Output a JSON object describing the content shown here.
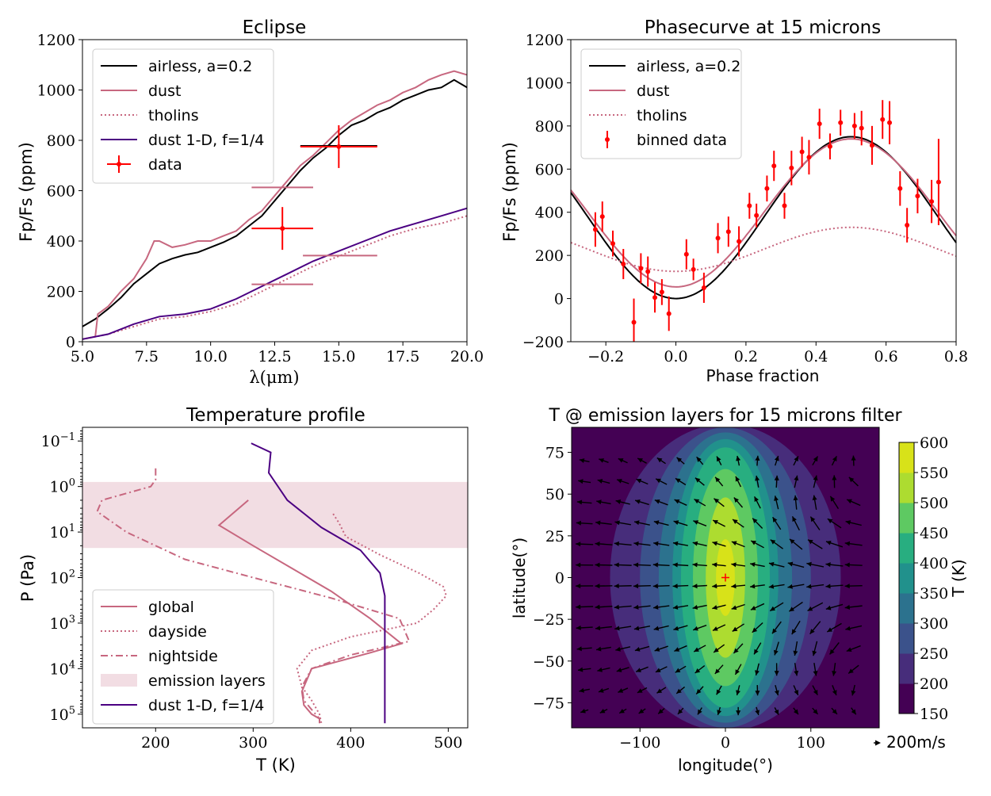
{
  "colors": {
    "black": "#000000",
    "dust": "#c7677f",
    "indigo": "#4b0082",
    "red": "#ff0000",
    "band": "#f2dde3"
  },
  "chart_data": [
    {
      "id": "eclipse",
      "type": "line",
      "title": "Eclipse",
      "xlabel": "λ(μm)",
      "ylabel": "Fp/Fs (ppm)",
      "xlim": [
        5.0,
        20.0
      ],
      "ylim": [
        0,
        1200
      ],
      "xticks": [
        "5.0",
        "7.5",
        "10.0",
        "12.5",
        "15.0",
        "17.5",
        "20.0"
      ],
      "yticks": [
        "0",
        "200",
        "400",
        "600",
        "800",
        "1000",
        "1200"
      ],
      "legend": [
        "airless, a=0.2",
        "dust",
        "tholins",
        "dust 1-D, f=1/4",
        "data"
      ],
      "series": [
        {
          "name": "airless, a=0.2",
          "style": "solid",
          "color": "black",
          "x": [
            5,
            5.5,
            6,
            6.5,
            7,
            7.5,
            8,
            8.5,
            9,
            9.5,
            10,
            10.5,
            11,
            11.5,
            12,
            12.5,
            13,
            13.5,
            14,
            14.5,
            15,
            15.5,
            16,
            16.5,
            17,
            17.5,
            18,
            18.5,
            19,
            19.5,
            20
          ],
          "y": [
            60,
            90,
            130,
            175,
            230,
            270,
            310,
            330,
            345,
            355,
            375,
            395,
            420,
            460,
            500,
            560,
            620,
            680,
            730,
            770,
            820,
            860,
            880,
            910,
            930,
            960,
            980,
            1000,
            1010,
            1040,
            1010
          ]
        },
        {
          "name": "dust",
          "style": "solid",
          "color": "dust",
          "x": [
            5,
            5.5,
            5.6,
            6,
            6.5,
            7,
            7.5,
            7.8,
            8,
            8.5,
            9,
            9.5,
            10,
            10.5,
            11,
            11.5,
            12,
            12.5,
            13,
            13.5,
            14,
            14.5,
            15,
            15.5,
            16,
            16.5,
            17,
            17.5,
            18,
            18.5,
            19,
            19.5,
            20
          ],
          "y": [
            10,
            20,
            110,
            140,
            200,
            250,
            330,
            400,
            400,
            375,
            385,
            400,
            400,
            420,
            440,
            485,
            520,
            580,
            640,
            700,
            740,
            790,
            840,
            880,
            910,
            940,
            960,
            990,
            1010,
            1040,
            1060,
            1075,
            1060
          ]
        },
        {
          "name": "tholins",
          "style": "dotted",
          "color": "dust",
          "x": [
            5,
            6,
            7,
            8,
            9,
            10,
            11,
            12,
            13,
            14,
            15,
            16,
            17,
            18,
            19,
            20
          ],
          "y": [
            10,
            30,
            60,
            90,
            100,
            120,
            150,
            200,
            250,
            300,
            340,
            380,
            420,
            450,
            470,
            500
          ]
        },
        {
          "name": "dust 1-D, f=1/4",
          "style": "solid",
          "color": "indigo",
          "x": [
            5,
            6,
            7,
            8,
            9,
            10,
            11,
            12,
            13,
            14,
            15,
            16,
            17,
            18,
            19,
            20
          ],
          "y": [
            10,
            30,
            70,
            100,
            110,
            130,
            170,
            220,
            270,
            320,
            360,
            400,
            440,
            470,
            500,
            530
          ]
        }
      ],
      "data_points": [
        {
          "x": 12.8,
          "y": 450,
          "xerr": 1.2,
          "yerr": 85,
          "color": "red"
        },
        {
          "x": 15.0,
          "y": 775,
          "xerr": 1.5,
          "yerr": 85,
          "color": "red"
        }
      ],
      "model_bins": [
        {
          "x0": 13.5,
          "x1": 16.5,
          "y": 778,
          "color": "black"
        },
        {
          "x0": 11.6,
          "x1": 14.0,
          "y": 613,
          "color": "dust"
        },
        {
          "x0": 11.6,
          "x1": 14.0,
          "y": 228,
          "color": "dust"
        },
        {
          "x0": 13.6,
          "x1": 16.5,
          "y": 342,
          "color": "dust"
        }
      ]
    },
    {
      "id": "phasecurve",
      "type": "line",
      "title": "Phasecurve at 15 microns",
      "xlabel": "Phase fraction",
      "ylabel": "Fp/Fs (ppm)",
      "xlim": [
        -0.3,
        0.8
      ],
      "ylim": [
        -200,
        1200
      ],
      "xticks": [
        "−0.2",
        "0.0",
        "0.2",
        "0.4",
        "0.6",
        "0.8"
      ],
      "yticks": [
        "−200",
        "0",
        "200",
        "400",
        "600",
        "800",
        "1000",
        "1200"
      ],
      "legend": [
        "airless, a=0.2",
        "dust",
        "tholins",
        "binned data"
      ],
      "series": [
        {
          "name": "airless, a=0.2",
          "style": "solid",
          "color": "black",
          "mean": 375,
          "amp": 375,
          "peak": 0.5
        },
        {
          "name": "dust",
          "style": "solid",
          "color": "dust",
          "mean": 397,
          "amp": 343,
          "peak": 0.5
        },
        {
          "name": "tholins",
          "style": "dotted",
          "color": "dust",
          "mean": 228,
          "amp": 102,
          "peak": 0.5
        }
      ],
      "binned_data": {
        "x": [
          -0.23,
          -0.21,
          -0.18,
          -0.15,
          -0.12,
          -0.1,
          -0.08,
          -0.06,
          -0.04,
          -0.02,
          0.03,
          0.05,
          0.08,
          0.12,
          0.15,
          0.18,
          0.21,
          0.23,
          0.26,
          0.28,
          0.31,
          0.33,
          0.36,
          0.38,
          0.41,
          0.44,
          0.47,
          0.51,
          0.53,
          0.56,
          0.59,
          0.61,
          0.64,
          0.66,
          0.69,
          0.73,
          0.75
        ],
        "y": [
          320,
          380,
          255,
          160,
          -110,
          140,
          125,
          5,
          30,
          -70,
          205,
          135,
          50,
          280,
          310,
          265,
          430,
          385,
          510,
          615,
          430,
          605,
          680,
          655,
          810,
          705,
          815,
          800,
          790,
          710,
          830,
          815,
          510,
          340,
          475,
          450,
          540
        ],
        "yerr": [
          80,
          70,
          60,
          70,
          110,
          70,
          70,
          70,
          60,
          80,
          70,
          50,
          70,
          70,
          70,
          70,
          60,
          55,
          60,
          70,
          60,
          80,
          70,
          80,
          70,
          60,
          60,
          60,
          80,
          90,
          90,
          100,
          80,
          80,
          80,
          100,
          200
        ]
      }
    },
    {
      "id": "temperature",
      "type": "line",
      "title": "Temperature profile",
      "xlabel": "T (K)",
      "ylabel": "P (Pa)",
      "xlim": [
        125,
        520
      ],
      "ylim_log10": [
        -1.3,
        5.3
      ],
      "xticks": [
        "200",
        "300",
        "400",
        "500"
      ],
      "yticks": [
        "10^{-1}",
        "10^{0}",
        "10^{1}",
        "10^{2}",
        "10^{3}",
        "10^{4}",
        "10^{5}"
      ],
      "legend": [
        "global",
        "dayside",
        "nightside",
        "emission layers",
        "dust 1-D, f=1/4"
      ],
      "emission_band_log10p": [
        -0.1,
        1.35
      ],
      "series": [
        {
          "name": "global",
          "style": "solid",
          "color": "dust",
          "T": [
            295,
            265,
            300,
            340,
            380,
            420,
            452,
            420,
            360,
            350,
            352,
            360,
            368,
            368
          ],
          "logP": [
            0.3,
            0.85,
            1.3,
            1.8,
            2.3,
            2.9,
            3.45,
            3.65,
            4.0,
            4.5,
            4.8,
            5.0,
            5.1,
            5.2
          ]
        },
        {
          "name": "dayside",
          "style": "dotted",
          "color": "dust",
          "T": [
            382,
            388,
            395,
            430,
            470,
            495,
            498,
            485,
            468,
            400,
            360,
            345,
            350,
            360,
            368,
            370
          ],
          "logP": [
            0.6,
            0.8,
            1.1,
            1.5,
            1.9,
            2.2,
            2.4,
            2.7,
            3.0,
            3.3,
            3.6,
            4.0,
            4.4,
            4.7,
            5.0,
            5.2
          ]
        },
        {
          "name": "nightside",
          "style": "dashdot",
          "color": "dust",
          "T": [
            200,
            200,
            195,
            145,
            140,
            170,
            230,
            300,
            380,
            450,
            460,
            400,
            360,
            350,
            352,
            360,
            368,
            368
          ],
          "logP": [
            -0.4,
            -0.15,
            0.0,
            0.3,
            0.55,
            1.0,
            1.6,
            2.0,
            2.45,
            2.9,
            3.4,
            3.7,
            4.0,
            4.4,
            4.7,
            4.9,
            5.1,
            5.2
          ]
        },
        {
          "name": "dust 1-D, f=1/4",
          "style": "solid",
          "color": "indigo",
          "T": [
            298,
            318,
            316,
            335,
            370,
            410,
            430,
            435,
            435,
            435,
            435,
            435,
            435
          ],
          "logP": [
            -0.95,
            -0.75,
            -0.3,
            0.3,
            0.9,
            1.4,
            1.9,
            2.4,
            3.0,
            3.6,
            4.2,
            4.8,
            5.2
          ]
        }
      ]
    },
    {
      "id": "map",
      "type": "heatmap",
      "title": "T @ emission layers for 15 microns filter",
      "xlabel": "longitude(°)",
      "ylabel": "latitude(°)",
      "xlim": [
        -180,
        180
      ],
      "ylim": [
        -90,
        90
      ],
      "xticks": [
        "−100",
        "0",
        "100"
      ],
      "yticks": [
        "−75",
        "−50",
        "−25",
        "0",
        "25",
        "50",
        "75"
      ],
      "colorbar_label": "T (K)",
      "colorbar_ticks": [
        "150",
        "200",
        "250",
        "300",
        "350",
        "400",
        "450",
        "500",
        "550",
        "600"
      ],
      "levels": [
        150,
        200,
        250,
        300,
        350,
        400,
        450,
        500,
        550,
        600
      ],
      "level_colors": [
        "#440154",
        "#472d7b",
        "#3b528b",
        "#2c728e",
        "#21918c",
        "#28ae80",
        "#5ec962",
        "#addc30",
        "#d8e219"
      ],
      "hotspot": {
        "lon": 0,
        "lat": 0
      },
      "quiver_key": "200m/s"
    }
  ]
}
